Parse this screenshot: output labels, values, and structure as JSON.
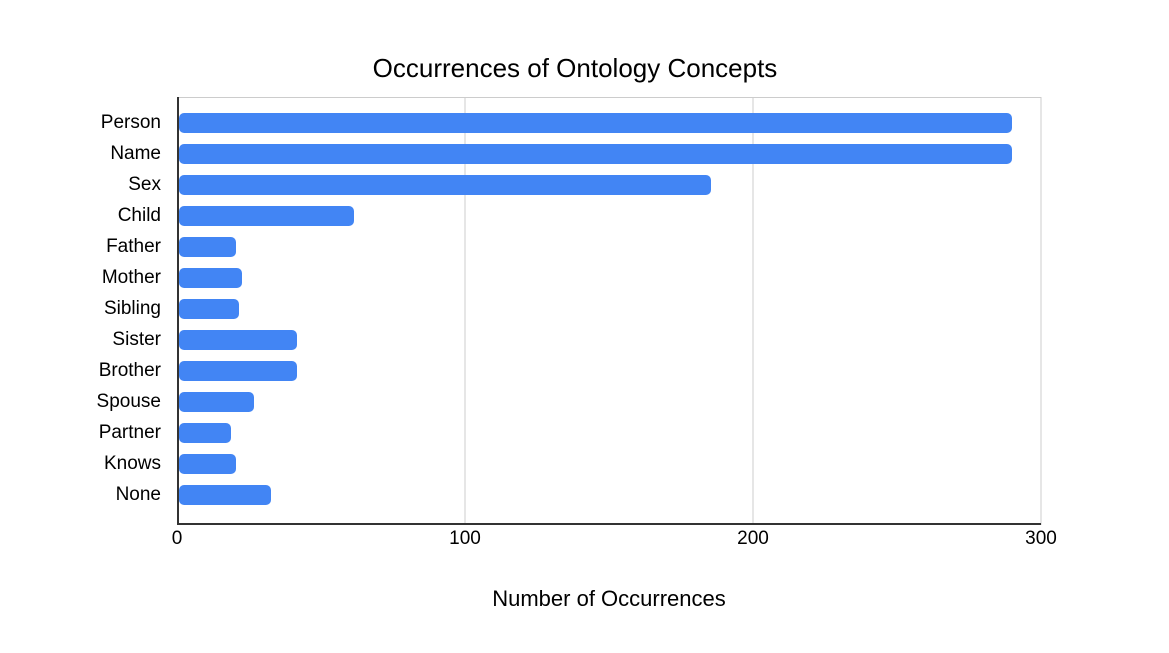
{
  "chart_data": {
    "type": "bar",
    "orientation": "horizontal",
    "title": "Occurrences of Ontology Concepts",
    "xlabel": "Number of Occurrences",
    "ylabel": "",
    "categories": [
      "Person",
      "Name",
      "Sex",
      "Child",
      "Father",
      "Mother",
      "Sibling",
      "Sister",
      "Brother",
      "Spouse",
      "Partner",
      "Knows",
      "None"
    ],
    "values": [
      290,
      290,
      185,
      61,
      20,
      22,
      21,
      41,
      41,
      26,
      18,
      20,
      32
    ],
    "xlim": [
      0,
      300
    ],
    "xticks": [
      0,
      100,
      200,
      300
    ],
    "xtick_labels": [
      "0",
      "100",
      "200",
      "300"
    ],
    "legend": "none",
    "grid": "vertical-only",
    "colors": {
      "bar": "#4285F4",
      "axis_line": "#333333",
      "gridline": "#cccccc",
      "text": "#000000",
      "background": "#ffffff"
    }
  }
}
